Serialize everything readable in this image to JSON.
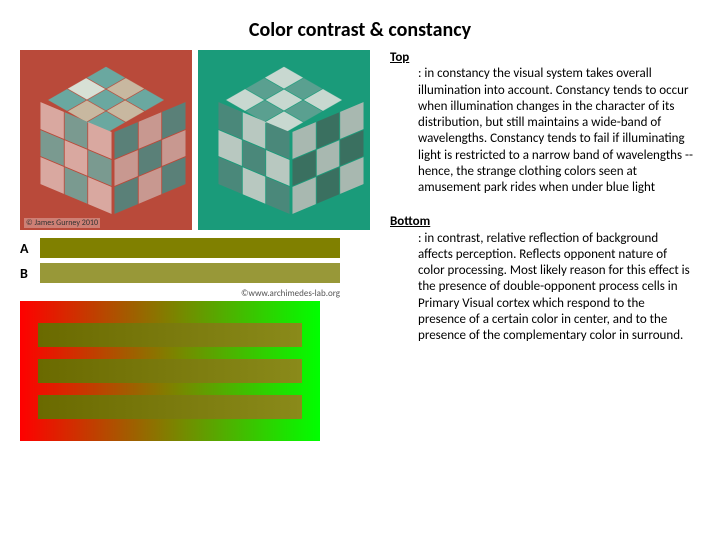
{
  "title": "Color contrast & constancy",
  "paragraphs": {
    "top": {
      "lead": "Top",
      "body": ": in constancy the visual system takes overall illumination into account. Constancy tends to occur when illumination changes in the character of its distribution, but still maintains a wide-band of wavelengths.  Constancy tends to fail if illuminating light is restricted to a narrow band of wavelengths -- hence, the strange clothing colors seen at amusement park rides when under blue light"
    },
    "bottom": {
      "lead": "Bottom",
      "body": ": in contrast, relative reflection of background affects perception. Reflects opponent nature of color processing.  Most likely reason for this effect is the presence of double-opponent process cells in Primary Visual cortex which respond to the presence of a certain color in center, and to the presence of the complementary color in surround."
    }
  },
  "cubes": {
    "panelA": {
      "bg": "#b94a3a",
      "credit": "© James Gurney 2010",
      "top_face": [
        "#6aa8a0",
        "#d7e0d5",
        "#6aa8a0",
        "#c8b8a0",
        "#6aa8a0",
        "#c8b8a0",
        "#6aa8a0",
        "#c8b8a0",
        "#6aa8a0"
      ],
      "left_face": [
        "#d9a8a0",
        "#7a9a90",
        "#d9a8a0",
        "#7a9a90",
        "#d9a8a0",
        "#7a9a90",
        "#d9a8a0",
        "#7a9a90",
        "#d9a8a0"
      ],
      "right_face": [
        "#5a8078",
        "#c89890",
        "#5a8078",
        "#c89890",
        "#5a8078",
        "#c89890",
        "#5a8078",
        "#c89890",
        "#5a8078"
      ]
    },
    "panelB": {
      "bg": "#1a9b7a",
      "top_face": [
        "#c8d8d0",
        "#5aa090",
        "#c8d8d0",
        "#5aa090",
        "#c8d8d0",
        "#5aa090",
        "#c8d8d0",
        "#5aa090",
        "#c8d8d0"
      ],
      "left_face": [
        "#4a887a",
        "#b8c8c0",
        "#4a887a",
        "#b8c8c0",
        "#4a887a",
        "#b8c8c0",
        "#4a887a",
        "#b8c8c0",
        "#4a887a"
      ],
      "right_face": [
        "#a8b8b0",
        "#3a7060",
        "#a8b8b0",
        "#3a7060",
        "#a8b8b0",
        "#3a7060",
        "#a8b8b0",
        "#3a7060",
        "#a8b8b0"
      ]
    }
  },
  "ab_bars": {
    "A": {
      "label": "A",
      "color": "#808000"
    },
    "B": {
      "label": "B",
      "color": "#989838"
    },
    "credit": "©www.archimedes-lab.org"
  },
  "gradient_panel": {
    "bg_gradient": {
      "from": "#ff0000",
      "to": "#00ff00"
    },
    "stripes": [
      {
        "from": "#6a6a00",
        "to": "#8a8a1a"
      },
      {
        "from": "#6a6a00",
        "to": "#8a8a1a"
      },
      {
        "from": "#6a6a00",
        "to": "#8a8a1a"
      }
    ]
  }
}
